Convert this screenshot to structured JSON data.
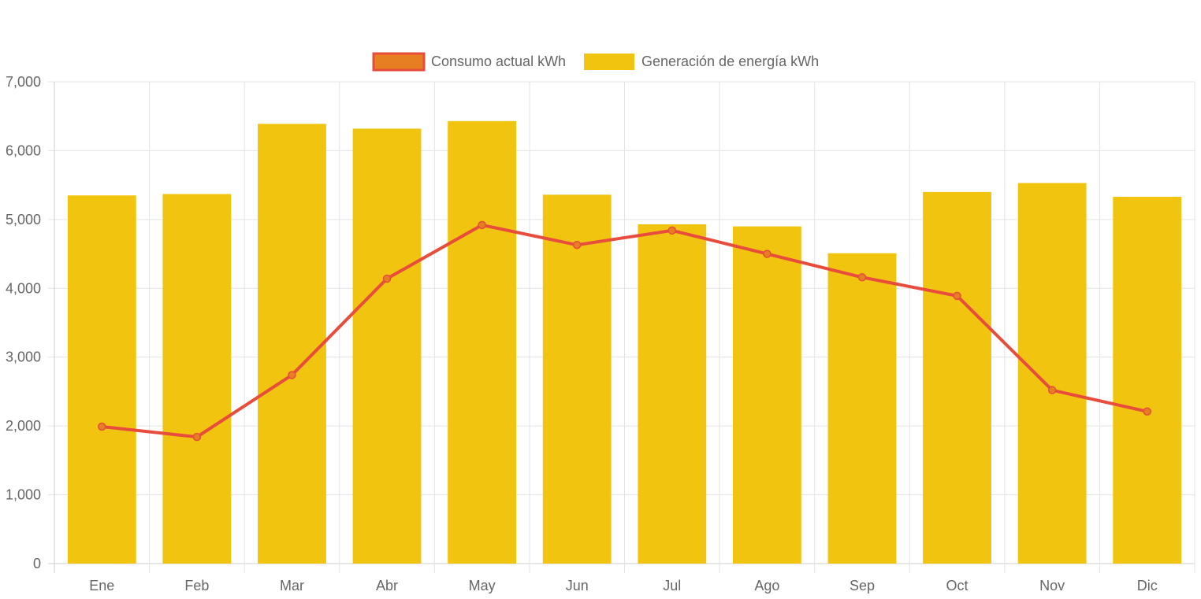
{
  "chart_data": {
    "type": "bar",
    "categories": [
      "Ene",
      "Feb",
      "Mar",
      "Abr",
      "May",
      "Jun",
      "Jul",
      "Ago",
      "Sep",
      "Oct",
      "Nov",
      "Dic"
    ],
    "series": [
      {
        "name": "Consumo actual kWh",
        "type": "line",
        "color": "#e74c3c",
        "point_fill": "#e67e22",
        "values": [
          1990,
          1840,
          2740,
          4140,
          4920,
          4630,
          4840,
          4500,
          4160,
          3890,
          2520,
          2210
        ]
      },
      {
        "name": "Generación de energía kWh",
        "type": "bar",
        "color": "#f1c40f",
        "values": [
          5350,
          5370,
          6390,
          6320,
          6430,
          5360,
          4930,
          4900,
          4510,
          5400,
          5530,
          5330
        ]
      }
    ],
    "ylim": [
      0,
      7000
    ],
    "y_ticks": [
      "0",
      "1,000",
      "2,000",
      "3,000",
      "4,000",
      "5,000",
      "6,000",
      "7,000"
    ],
    "y_tick_values": [
      0,
      1000,
      2000,
      3000,
      4000,
      5000,
      6000,
      7000
    ],
    "grid": true,
    "legend_position": "top-center",
    "title": "",
    "xlabel": "",
    "ylabel": ""
  }
}
